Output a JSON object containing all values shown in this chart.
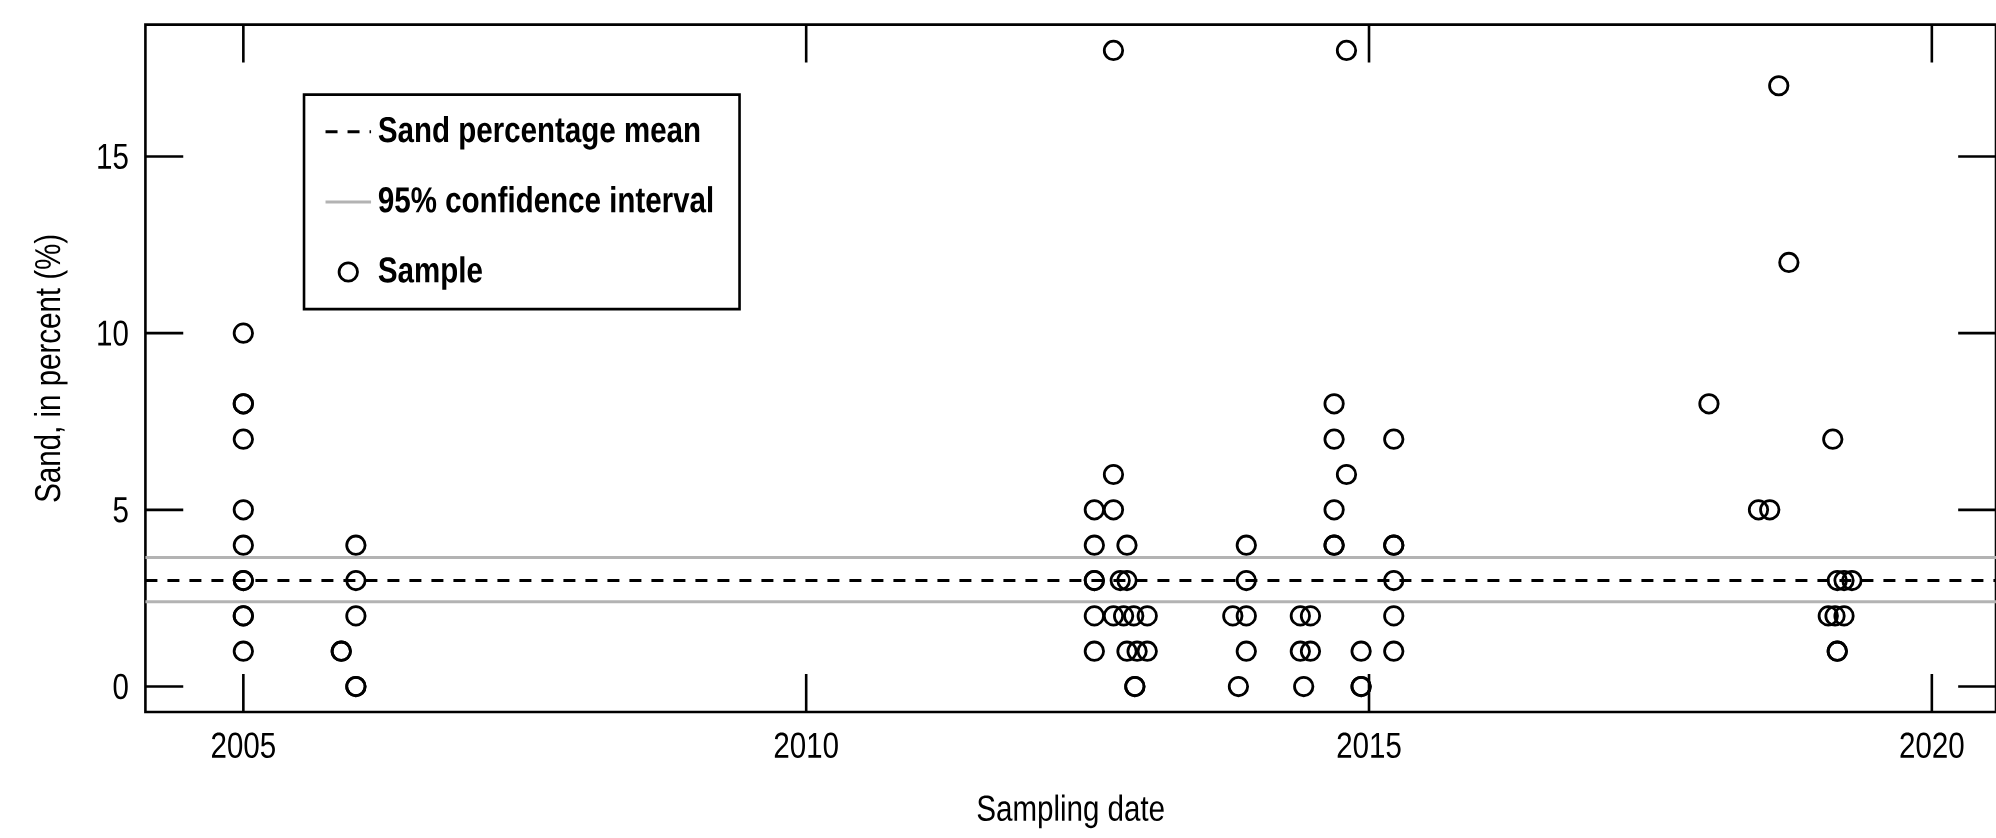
{
  "chart_data": {
    "type": "scatter",
    "xlabel": "Sampling date",
    "ylabel": "Sand, in percent (%)",
    "xlim": [
      2004.13,
      2020.57
    ],
    "xticks": [
      2005,
      2010,
      2015,
      2020
    ],
    "ylim": [
      -0.72,
      18.73
    ],
    "yticks": [
      0,
      5,
      10,
      15
    ],
    "grid": false,
    "legend": "top left",
    "marker": "circle",
    "ref_lines": [
      {
        "axis": "y",
        "value": 3.0,
        "label": "Sand percentage mean",
        "color": "#000000",
        "line_style": "dashed"
      },
      {
        "axis": "y",
        "value": 3.65,
        "label": "95% confidence interval",
        "color": "#b3b3b3",
        "line_style": "solid"
      },
      {
        "axis": "y",
        "value": 2.4,
        "color": "#b3b3b3",
        "line_style": "solid"
      }
    ],
    "series": [
      {
        "name": "Sample",
        "color": "#000000",
        "x": [
          2005.0,
          2005.0,
          2005.0,
          2005.0,
          2005.0,
          2005.0,
          2005.0,
          2005.0,
          2005.0,
          2005.0,
          2005.0,
          2005.87,
          2005.87,
          2006.0,
          2006.0,
          2006.0,
          2006.0,
          2006.0,
          2012.73,
          2014.8,
          2012.73,
          2012.56,
          2012.56,
          2012.56,
          2012.56,
          2012.56,
          2012.56,
          2012.73,
          2012.73,
          2012.85,
          2012.85,
          2012.85,
          2012.79,
          2012.82,
          2012.91,
          2013.03,
          2013.03,
          2012.94,
          2012.92,
          2012.92,
          2013.91,
          2013.91,
          2013.91,
          2013.91,
          2013.79,
          2013.84,
          2014.39,
          2014.39,
          2014.48,
          2014.48,
          2014.42,
          2014.69,
          2014.69,
          2014.69,
          2014.69,
          2014.69,
          2014.8,
          2014.93,
          2014.93,
          2014.93,
          2015.22,
          2015.22,
          2015.22,
          2015.22,
          2015.22,
          2015.22,
          2018.64,
          2018.73,
          2018.02,
          2019.12,
          2018.46,
          2018.56,
          2019.16,
          2019.22,
          2019.29,
          2019.08,
          2019.14,
          2019.22,
          2019.16,
          2019.16
        ],
        "values": [
          10,
          8,
          8,
          7,
          5,
          4,
          3,
          3,
          2,
          2,
          1,
          1,
          1,
          4,
          3,
          2,
          0,
          0,
          18,
          18,
          6,
          5,
          4,
          3,
          3,
          2,
          1,
          5,
          2,
          4,
          3,
          1,
          3,
          2,
          2,
          2,
          1,
          1,
          0,
          0,
          4,
          3,
          2,
          1,
          2,
          0,
          2,
          1,
          2,
          1,
          0,
          8,
          7,
          5,
          4,
          4,
          6,
          1,
          0,
          0,
          7,
          4,
          4,
          3,
          2,
          1,
          17,
          12,
          8,
          7,
          5,
          5,
          3,
          3,
          3,
          2,
          2,
          2,
          1,
          1
        ]
      }
    ]
  }
}
